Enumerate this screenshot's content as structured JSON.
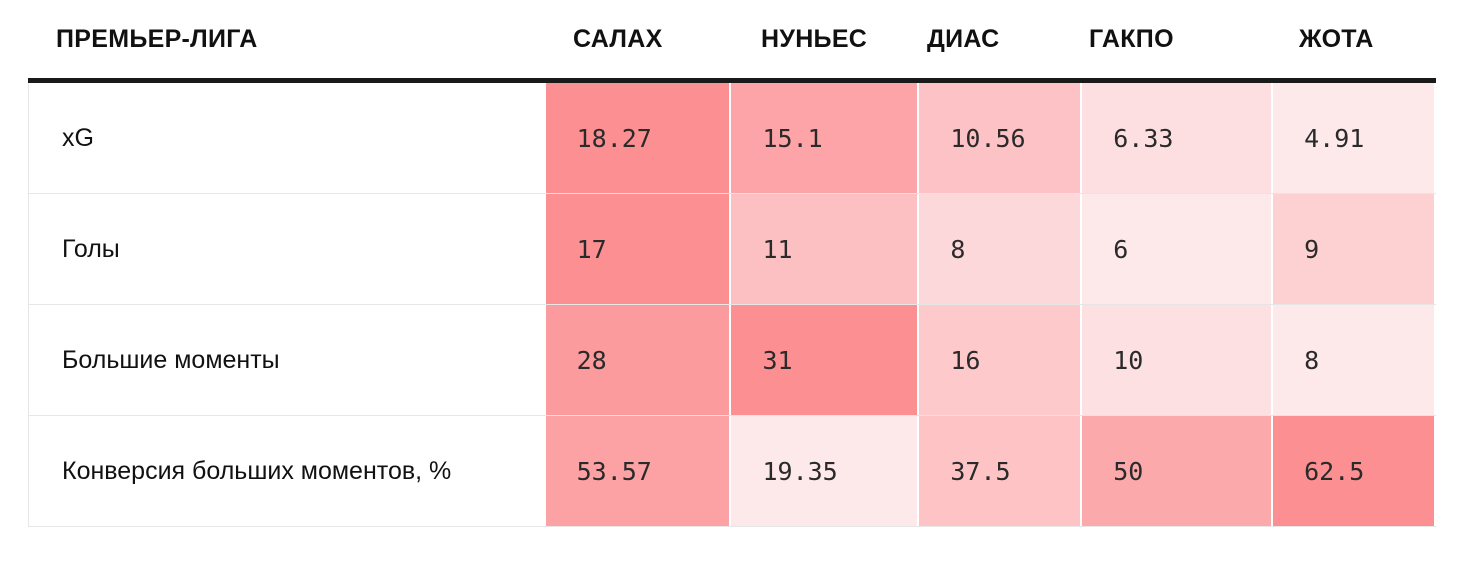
{
  "chart_data": {
    "type": "heatmap",
    "title": "ПРЕМЬЕР-ЛИГА",
    "columns": [
      "САЛАХ",
      "НУНЬЕС",
      "ДИАС",
      "ГАКПО",
      "ЖОТА"
    ],
    "rows": [
      {
        "label": "xG",
        "values": [
          "18.27",
          "15.1",
          "10.56",
          "6.33",
          "4.91"
        ]
      },
      {
        "label": "Голы",
        "values": [
          "17",
          "11",
          "8",
          "6",
          "9"
        ]
      },
      {
        "label": "Большие моменты",
        "values": [
          "28",
          "31",
          "16",
          "10",
          "8"
        ]
      },
      {
        "label": "Конверсия больших моментов, %",
        "values": [
          "53.57",
          "19.35",
          "37.5",
          "50",
          "62.5"
        ]
      }
    ],
    "colors": {
      "min": "#fde8ea",
      "max": "#fc8f92"
    }
  }
}
